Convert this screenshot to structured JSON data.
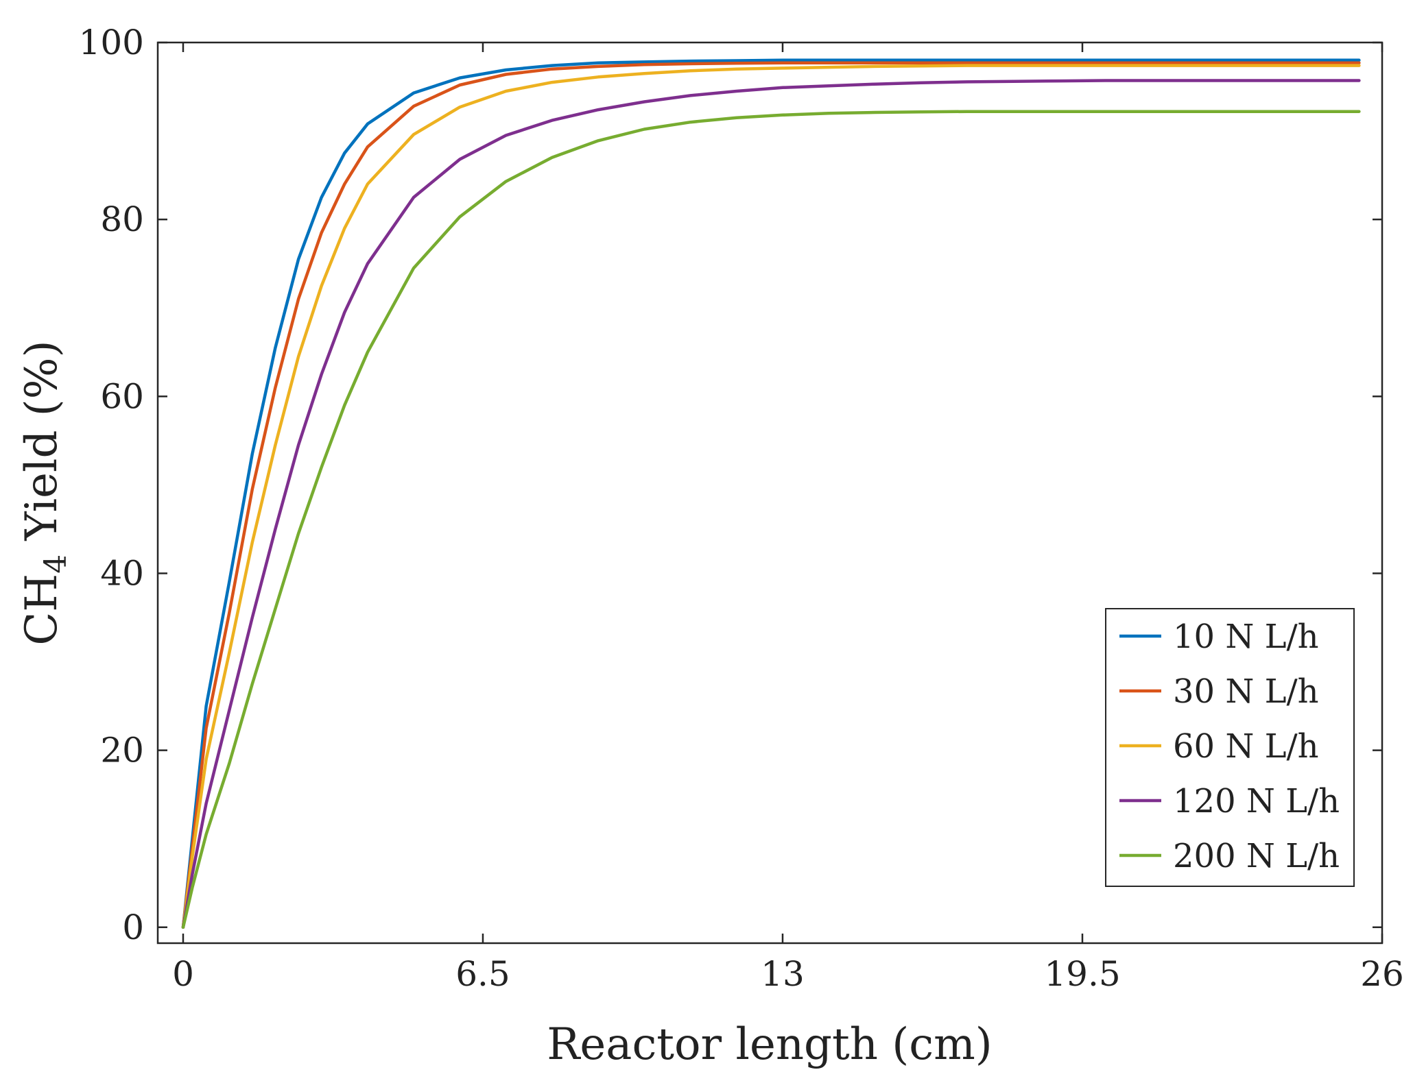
{
  "chart_data": {
    "type": "line",
    "title": "",
    "xlabel": "Reactor length (cm)",
    "ylabel_main": "CH",
    "ylabel_sub": "4",
    "ylabel_rest": " Yield (%)",
    "xlim": [
      -0.55,
      26
    ],
    "ylim": [
      -1.8,
      100
    ],
    "xticks": [
      0,
      6.5,
      13,
      19.5,
      26
    ],
    "xtick_labels": [
      "0",
      "6.5",
      "13",
      "19.5",
      "26"
    ],
    "yticks": [
      0,
      20,
      40,
      60,
      80,
      100
    ],
    "ytick_labels": [
      "0",
      "20",
      "40",
      "60",
      "80",
      "100"
    ],
    "legend_position": "lower-right",
    "x": [
      0,
      0.2,
      0.5,
      1,
      1.5,
      2,
      2.5,
      3,
      3.5,
      4,
      5,
      6,
      7,
      8,
      9,
      10,
      11,
      12,
      13,
      14,
      15,
      16,
      17,
      18,
      19,
      20,
      21,
      22,
      23,
      24,
      25,
      25.5
    ],
    "series": [
      {
        "name": "10 N L/h",
        "color": "#0072BD",
        "values": [
          0,
          10,
          25,
          39,
          53.5,
          65.5,
          75.5,
          82.5,
          87.5,
          90.8,
          94.3,
          96.0,
          96.9,
          97.4,
          97.7,
          97.8,
          97.9,
          97.95,
          98.0,
          98.0,
          98.0,
          98.0,
          98.0,
          98.0,
          98.0,
          98.0,
          98.0,
          98.0,
          98.0,
          98.0,
          98.0,
          98.0
        ]
      },
      {
        "name": "30 N L/h",
        "color": "#D95319",
        "values": [
          0,
          9,
          22.5,
          35.5,
          49.5,
          61,
          71,
          78.5,
          84,
          88.2,
          92.8,
          95.2,
          96.4,
          97.0,
          97.3,
          97.5,
          97.6,
          97.65,
          97.7,
          97.7,
          97.7,
          97.7,
          97.7,
          97.7,
          97.7,
          97.7,
          97.7,
          97.7,
          97.7,
          97.7,
          97.7,
          97.7
        ]
      },
      {
        "name": "60 N L/h",
        "color": "#EDB120",
        "values": [
          0,
          8,
          19,
          31,
          43.5,
          54.5,
          64.5,
          72.5,
          79,
          84,
          89.6,
          92.7,
          94.5,
          95.5,
          96.1,
          96.5,
          96.8,
          97.0,
          97.1,
          97.2,
          97.3,
          97.35,
          97.4,
          97.4,
          97.4,
          97.4,
          97.4,
          97.4,
          97.4,
          97.4,
          97.4,
          97.4
        ]
      },
      {
        "name": "120 N L/h",
        "color": "#7E2F8E",
        "values": [
          0,
          6,
          14,
          24.5,
          35,
          45,
          54.5,
          62.5,
          69.5,
          75,
          82.5,
          86.8,
          89.5,
          91.2,
          92.4,
          93.3,
          94.0,
          94.5,
          94.9,
          95.1,
          95.3,
          95.45,
          95.55,
          95.6,
          95.65,
          95.7,
          95.7,
          95.7,
          95.7,
          95.7,
          95.7,
          95.7
        ]
      },
      {
        "name": "200 N L/h",
        "color": "#77AC30",
        "values": [
          0,
          4.5,
          10.5,
          18.5,
          27.5,
          36,
          44.5,
          52,
          59,
          65,
          74.5,
          80.3,
          84.3,
          87.0,
          88.9,
          90.2,
          91.0,
          91.5,
          91.8,
          92.0,
          92.1,
          92.15,
          92.2,
          92.2,
          92.2,
          92.2,
          92.2,
          92.2,
          92.2,
          92.2,
          92.2,
          92.2
        ]
      }
    ]
  }
}
